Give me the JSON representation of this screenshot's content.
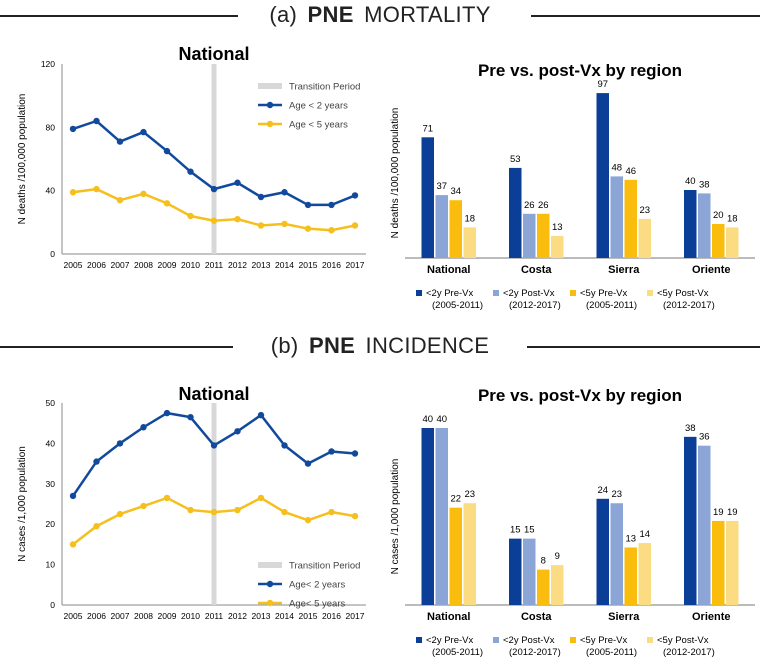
{
  "section_a": {
    "prefix": "(a)",
    "bold": "PNE",
    "rest": "MORTALITY"
  },
  "section_b": {
    "prefix": "(b)",
    "bold": "PNE",
    "rest": "INCIDENCE"
  },
  "colors": {
    "lt2_pre": "#0b3e96",
    "lt2_post": "#8ba6d6",
    "lt5_pre": "#fbbd0d",
    "lt5_post": "#fbdc83",
    "line2": "#114a9c",
    "line5": "#f5bf1d",
    "band": "#d8d8d8"
  },
  "chart_data": [
    {
      "id": "a_line",
      "type": "line",
      "title": "National",
      "ylabel": "N deaths /100,000 population",
      "x": [
        "2005",
        "2006",
        "2007",
        "2008",
        "2009",
        "2010",
        "2011",
        "2012",
        "2013",
        "2014",
        "2015",
        "2016",
        "2017"
      ],
      "ylim": [
        0,
        120
      ],
      "yticks": [
        0,
        40,
        80,
        120
      ],
      "band_label": "Transition Period",
      "band_x": "2011",
      "series": [
        {
          "name": "Age < 2 years",
          "values": [
            79,
            84,
            71,
            77,
            65,
            52,
            41,
            45,
            36,
            39,
            31,
            31,
            37
          ]
        },
        {
          "name": "Age < 5 years",
          "values": [
            39,
            41,
            34,
            38,
            32,
            24,
            21,
            22,
            18,
            19,
            16,
            15,
            18
          ]
        }
      ]
    },
    {
      "id": "a_bar",
      "type": "bar",
      "title": "Pre vs. post-Vx by region",
      "ylabel": "N deaths /100,000 population",
      "categories": [
        "National",
        "Costa",
        "Sierra",
        "Oriente"
      ],
      "ymax": 100,
      "series": [
        {
          "name": "<2y Pre-Vx",
          "sub": "(2005-2011)",
          "values": [
            71,
            53,
            97,
            40
          ]
        },
        {
          "name": "<2y Post-Vx",
          "sub": "(2012-2017)",
          "values": [
            37,
            26,
            48,
            38
          ]
        },
        {
          "name": "<5y Pre-Vx",
          "sub": "(2005-2011)",
          "values": [
            34,
            26,
            46,
            20
          ]
        },
        {
          "name": "<5y Post-Vx",
          "sub": "(2012-2017)",
          "values": [
            18,
            13,
            23,
            18
          ]
        }
      ]
    },
    {
      "id": "b_line",
      "type": "line",
      "title": "National",
      "ylabel": "N cases /1,000 population",
      "x": [
        "2005",
        "2006",
        "2007",
        "2008",
        "2009",
        "2010",
        "2011",
        "2012",
        "2013",
        "2014",
        "2015",
        "2016",
        "2017"
      ],
      "ylim": [
        0,
        50
      ],
      "yticks": [
        0,
        10,
        20,
        30,
        40,
        50
      ],
      "band_label": "Transition Period",
      "band_x": "2011",
      "series": [
        {
          "name": "Age< 2 years",
          "values": [
            27,
            35.5,
            40,
            44,
            47.5,
            46.5,
            39.5,
            43,
            47,
            39.5,
            35,
            38,
            37.5
          ]
        },
        {
          "name": "Age< 5 years",
          "values": [
            15,
            19.5,
            22.5,
            24.5,
            26.5,
            23.5,
            23,
            23.5,
            26.5,
            23,
            21,
            23,
            22
          ]
        }
      ]
    },
    {
      "id": "b_bar",
      "type": "bar",
      "title": "Pre vs. post-Vx by region",
      "ylabel": "N cases /1,000 population",
      "categories": [
        "National",
        "Costa",
        "Sierra",
        "Oriente"
      ],
      "ymax": 40,
      "series": [
        {
          "name": "<2y Pre-Vx",
          "sub": "(2005-2011)",
          "values": [
            40,
            15,
            24,
            38
          ]
        },
        {
          "name": "<2y Post-Vx",
          "sub": "(2012-2017)",
          "values": [
            40,
            15,
            23,
            36
          ]
        },
        {
          "name": "<5y Pre-Vx",
          "sub": "(2005-2011)",
          "values": [
            22,
            8,
            13,
            19
          ]
        },
        {
          "name": "<5y Post-Vx",
          "sub": "(2012-2017)",
          "values": [
            23,
            9,
            14,
            19
          ]
        }
      ]
    }
  ]
}
